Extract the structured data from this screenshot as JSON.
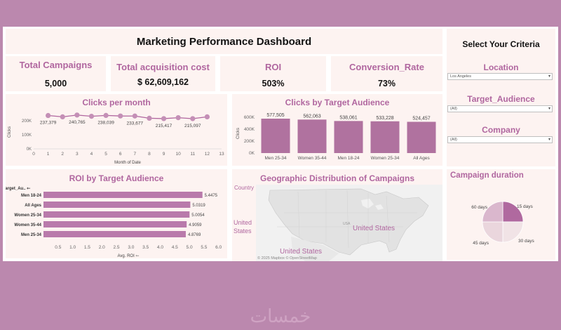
{
  "title": "Marketing Performance Dashboard",
  "kpis": {
    "campaigns": {
      "label": "Total Campaigns",
      "value": "5,000"
    },
    "cost": {
      "label": "Total acquisition cost",
      "value": "$ 62,609,162"
    },
    "roi": {
      "label": "ROI",
      "value": "503%"
    },
    "conversion": {
      "label": "Conversion_Rate",
      "value": "73%"
    }
  },
  "criteria": {
    "title": "Select Your Criteria",
    "location": {
      "label": "Location",
      "value": "Los Angeles"
    },
    "audience": {
      "label": "Target_Audience",
      "value": "(All)"
    },
    "company": {
      "label": "Company",
      "value": "(All)"
    }
  },
  "duration_title": "Campaign duration",
  "map": {
    "title": "Geographic Distribution of Campaigns",
    "header": "Country",
    "row_label": "United States",
    "country_label": "United States",
    "bottom_label": "United States",
    "attribution": "© 2025 Mapbox © OpenStreetMap"
  },
  "watermark": "خمسات",
  "chart_data": [
    {
      "id": "clicks_month",
      "type": "line",
      "title": "Clicks per month",
      "xlabel": "Month of Date",
      "ylabel": "Clicks",
      "x": [
        1,
        2,
        3,
        4,
        5,
        6,
        7,
        8,
        9,
        10,
        11,
        12
      ],
      "values": [
        237379,
        228000,
        240765,
        232000,
        238039,
        234000,
        233677,
        218000,
        215417,
        222000,
        215097,
        228000
      ],
      "data_labels": [
        {
          "x": 1,
          "text": "237,379"
        },
        {
          "x": 3,
          "text": "240,765"
        },
        {
          "x": 5,
          "text": "238,039"
        },
        {
          "x": 7,
          "text": "233,677"
        },
        {
          "x": 9,
          "text": "215,417"
        },
        {
          "x": 11,
          "text": "215,097"
        }
      ],
      "xticks": [
        "0",
        "1",
        "2",
        "3",
        "4",
        "5",
        "6",
        "7",
        "8",
        "9",
        "10",
        "11",
        "12",
        "13"
      ],
      "xlim": [
        0,
        13
      ],
      "yticks": [
        {
          "v": 200000,
          "label": "200K"
        },
        {
          "v": 100000,
          "label": "100K"
        },
        {
          "v": 0,
          "label": "0K"
        }
      ],
      "ylim": [
        0,
        260000
      ],
      "color": "#b0669f"
    },
    {
      "id": "clicks_audience",
      "type": "bar",
      "title": "Clicks by Target Audience",
      "ylabel": "Clicks",
      "categories": [
        "Men 25-34",
        "Women 35-44",
        "Men 18-24",
        "Women 25-34",
        "All Ages"
      ],
      "values": [
        577505,
        562063,
        538061,
        533228,
        524457
      ],
      "value_labels": [
        "577,505",
        "562,063",
        "538,061",
        "533,228",
        "524,457"
      ],
      "yticks": [
        {
          "v": 600000,
          "label": "600K"
        },
        {
          "v": 400000,
          "label": "400K"
        },
        {
          "v": 200000,
          "label": "200K"
        },
        {
          "v": 0,
          "label": "0K"
        }
      ],
      "ylim": [
        0,
        660000
      ],
      "color": "#b0729f"
    },
    {
      "id": "roi_audience",
      "type": "bar",
      "orientation": "horizontal",
      "title": "ROI by Target Audience",
      "header": "Target_Au.. ⇽",
      "xlabel": "Avg. ROI ⇽",
      "categories": [
        "Men 18-24",
        "All Ages",
        "Women 25-34",
        "Women 35-44",
        "Men 25-34"
      ],
      "values": [
        5.4475,
        5.0319,
        5.0054,
        4.9059,
        4.8769
      ],
      "value_labels": [
        "5.4475",
        "5.0319",
        "5.0054",
        "4.9059",
        "4.8769"
      ],
      "xticks": [
        "0.5",
        "1.0",
        "1.5",
        "2.0",
        "2.5",
        "3.0",
        "3.5",
        "4.0",
        "4.5",
        "5.0",
        "5.5",
        "6.0"
      ],
      "xlim": [
        0,
        6.2
      ],
      "color": "#b97aab"
    },
    {
      "id": "duration",
      "type": "pie",
      "title": "Campaign duration",
      "labels": [
        "15 days",
        "30 days",
        "45 days",
        "60 days"
      ],
      "values": [
        25,
        25,
        25,
        25
      ],
      "colors": [
        "#b0699f",
        "#f1e3e6",
        "#ead6dd",
        "#dab7cd"
      ]
    }
  ]
}
